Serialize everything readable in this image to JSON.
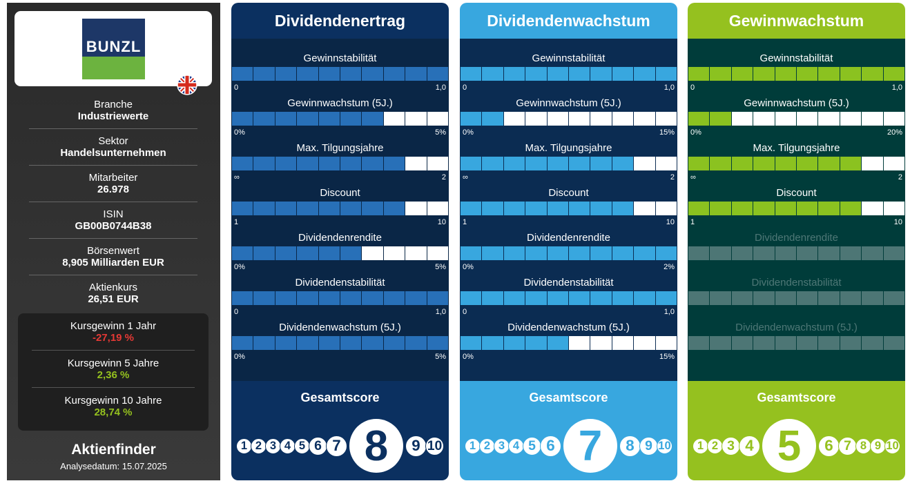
{
  "sidebar": {
    "logo": "BUNZL",
    "facts": [
      {
        "label": "Branche",
        "value": "Industriewerte"
      },
      {
        "label": "Sektor",
        "value": "Handelsunternehmen"
      },
      {
        "label": "Mitarbeiter",
        "value": "26.978"
      },
      {
        "label": "ISIN",
        "value": "GB00B0744B38"
      },
      {
        "label": "Börsenwert",
        "value": "8,905 Milliarden EUR"
      },
      {
        "label": "Aktienkurs",
        "value": "26,51 EUR"
      }
    ],
    "performance": [
      {
        "label": "Kursgewinn 1 Jahr",
        "value": "-27,19 %",
        "color": "#e53935"
      },
      {
        "label": "Kursgewinn 5 Jahre",
        "value": "2,36 %",
        "color": "#95c11f"
      },
      {
        "label": "Kursgewinn 10 Jahre",
        "value": "28,74 %",
        "color": "#95c11f"
      }
    ],
    "brand": "Aktienfinder",
    "date": "Analysedatum: 15.07.2025"
  },
  "score_scale": [
    1,
    2,
    3,
    4,
    5,
    6,
    7,
    8,
    9,
    10
  ],
  "panels": [
    {
      "title": "Dividendenertrag",
      "color": "#0b3060",
      "metric_bg": "#0a2646",
      "cell_color": "#2870b8",
      "score_label": "Gesamtscore",
      "score": 8,
      "metrics": [
        {
          "label": "Gewinnstabilität",
          "filled": 10,
          "min": "0",
          "max": "1,0",
          "active": true
        },
        {
          "label": "Gewinnwachstum (5J.)",
          "filled": 7,
          "min": "0%",
          "max": "5%",
          "active": true
        },
        {
          "label": "Max. Tilgungsjahre",
          "filled": 8,
          "min": "∞",
          "max": "2",
          "active": true
        },
        {
          "label": "Discount",
          "filled": 8,
          "min": "1",
          "max": "10",
          "active": true
        },
        {
          "label": "Dividendenrendite",
          "filled": 6,
          "min": "0%",
          "max": "5%",
          "active": true
        },
        {
          "label": "Dividendenstabilität",
          "filled": 10,
          "min": "0",
          "max": "1,0",
          "active": true
        },
        {
          "label": "Dividendenwachstum (5J.)",
          "filled": 10,
          "min": "0%",
          "max": "5%",
          "active": true
        }
      ]
    },
    {
      "title": "Dividendenwachstum",
      "color": "#38a7df",
      "metric_bg": "#0b2c52",
      "cell_color": "#38a7df",
      "score_label": "Gesamtscore",
      "score": 7,
      "metrics": [
        {
          "label": "Gewinnstabilität",
          "filled": 10,
          "min": "0",
          "max": "1,0",
          "active": true
        },
        {
          "label": "Gewinnwachstum (5J.)",
          "filled": 2,
          "min": "0%",
          "max": "15%",
          "active": true
        },
        {
          "label": "Max. Tilgungsjahre",
          "filled": 8,
          "min": "∞",
          "max": "2",
          "active": true
        },
        {
          "label": "Discount",
          "filled": 8,
          "min": "1",
          "max": "10",
          "active": true
        },
        {
          "label": "Dividendenrendite",
          "filled": 10,
          "min": "0%",
          "max": "2%",
          "active": true
        },
        {
          "label": "Dividendenstabilität",
          "filled": 10,
          "min": "0",
          "max": "1,0",
          "active": true
        },
        {
          "label": "Dividendenwachstum (5J.)",
          "filled": 5,
          "min": "0%",
          "max": "15%",
          "active": true
        }
      ]
    },
    {
      "title": "Gewinnwachstum",
      "color": "#95c11f",
      "metric_bg": "#003c3a",
      "cell_color": "#8bc220",
      "score_label": "Gesamtscore",
      "score": 5,
      "metrics": [
        {
          "label": "Gewinnstabilität",
          "filled": 10,
          "min": "0",
          "max": "1,0",
          "active": true
        },
        {
          "label": "Gewinnwachstum (5J.)",
          "filled": 2,
          "min": "0%",
          "max": "20%",
          "active": true
        },
        {
          "label": "Max. Tilgungsjahre",
          "filled": 8,
          "min": "∞",
          "max": "2",
          "active": true
        },
        {
          "label": "Discount",
          "filled": 8,
          "min": "1",
          "max": "10",
          "active": true
        },
        {
          "label": "Dividendenrendite",
          "active": false
        },
        {
          "label": "Dividendenstabilität",
          "active": false
        },
        {
          "label": "Dividendenwachstum (5J.)",
          "active": false
        }
      ]
    }
  ]
}
